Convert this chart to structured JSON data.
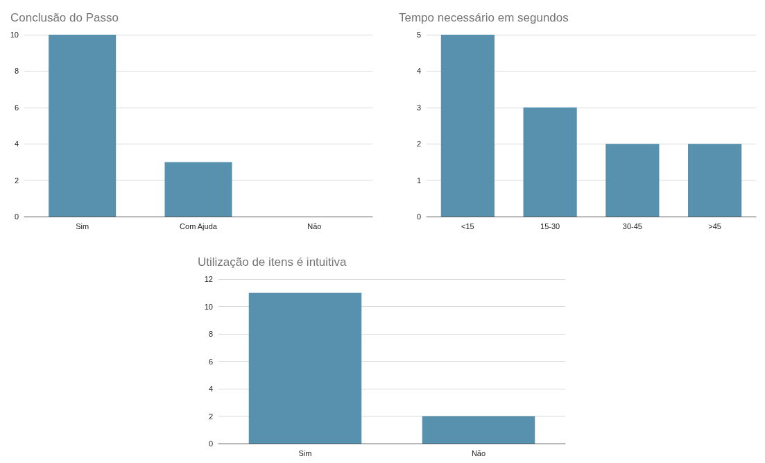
{
  "chart_data": [
    {
      "type": "bar",
      "title": "Conclusão do Passo",
      "categories": [
        "Sim",
        "Com Ajuda",
        "Não"
      ],
      "values": [
        10,
        3,
        0
      ],
      "color": "#5891ad",
      "ylim": [
        0,
        10
      ],
      "yticks": [
        0,
        2,
        4,
        6,
        8,
        10
      ],
      "grid": "y"
    },
    {
      "type": "bar",
      "title": "Tempo necessário em segundos",
      "categories": [
        "<15",
        "15-30",
        "30-45",
        ">45"
      ],
      "values": [
        5,
        3,
        2,
        2
      ],
      "color": "#5891ad",
      "ylim": [
        0,
        5
      ],
      "yticks": [
        0,
        1,
        2,
        3,
        4,
        5
      ],
      "grid": "y"
    },
    {
      "type": "bar",
      "title": "Utilização de itens é intuitiva",
      "categories": [
        "Sim",
        "Não"
      ],
      "values": [
        11,
        2
      ],
      "color": "#5891ad",
      "ylim": [
        0,
        12
      ],
      "yticks": [
        0,
        2,
        4,
        6,
        8,
        10,
        12
      ],
      "grid": "y"
    }
  ]
}
